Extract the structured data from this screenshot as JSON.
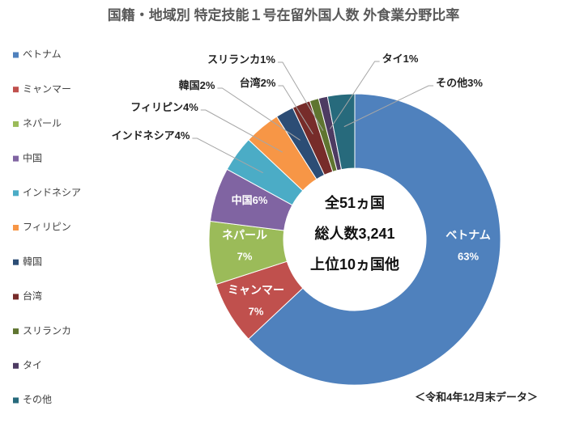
{
  "chart_data": {
    "type": "donut",
    "title": "国籍・地域別 特定技能１号在留外国人数 外食業分野比率",
    "categories": [
      "ベトナム",
      "ミャンマー",
      "ネパール",
      "中国",
      "インドネシア",
      "フィリピン",
      "韓国",
      "台湾",
      "スリランカ",
      "タイ",
      "その他"
    ],
    "values": [
      63,
      7,
      7,
      6,
      4,
      4,
      2,
      2,
      1,
      1,
      3
    ],
    "value_labels": [
      "63%",
      "7%",
      "7%",
      "6%",
      "4%",
      "4%",
      "2%",
      "2%",
      "1%",
      "1%",
      "3%"
    ],
    "colors": [
      "#4f81bd",
      "#c0504d",
      "#9bbb59",
      "#8064a2",
      "#4bacc6",
      "#f79646",
      "#2c4d75",
      "#772c2a",
      "#5f7530",
      "#4d3b62",
      "#276a7c"
    ],
    "center_text": [
      "全51ヵ国",
      "総人数3,241",
      "上位10ヵ国他"
    ],
    "note": "＜令和4年12月末データ＞",
    "legend": "left"
  }
}
